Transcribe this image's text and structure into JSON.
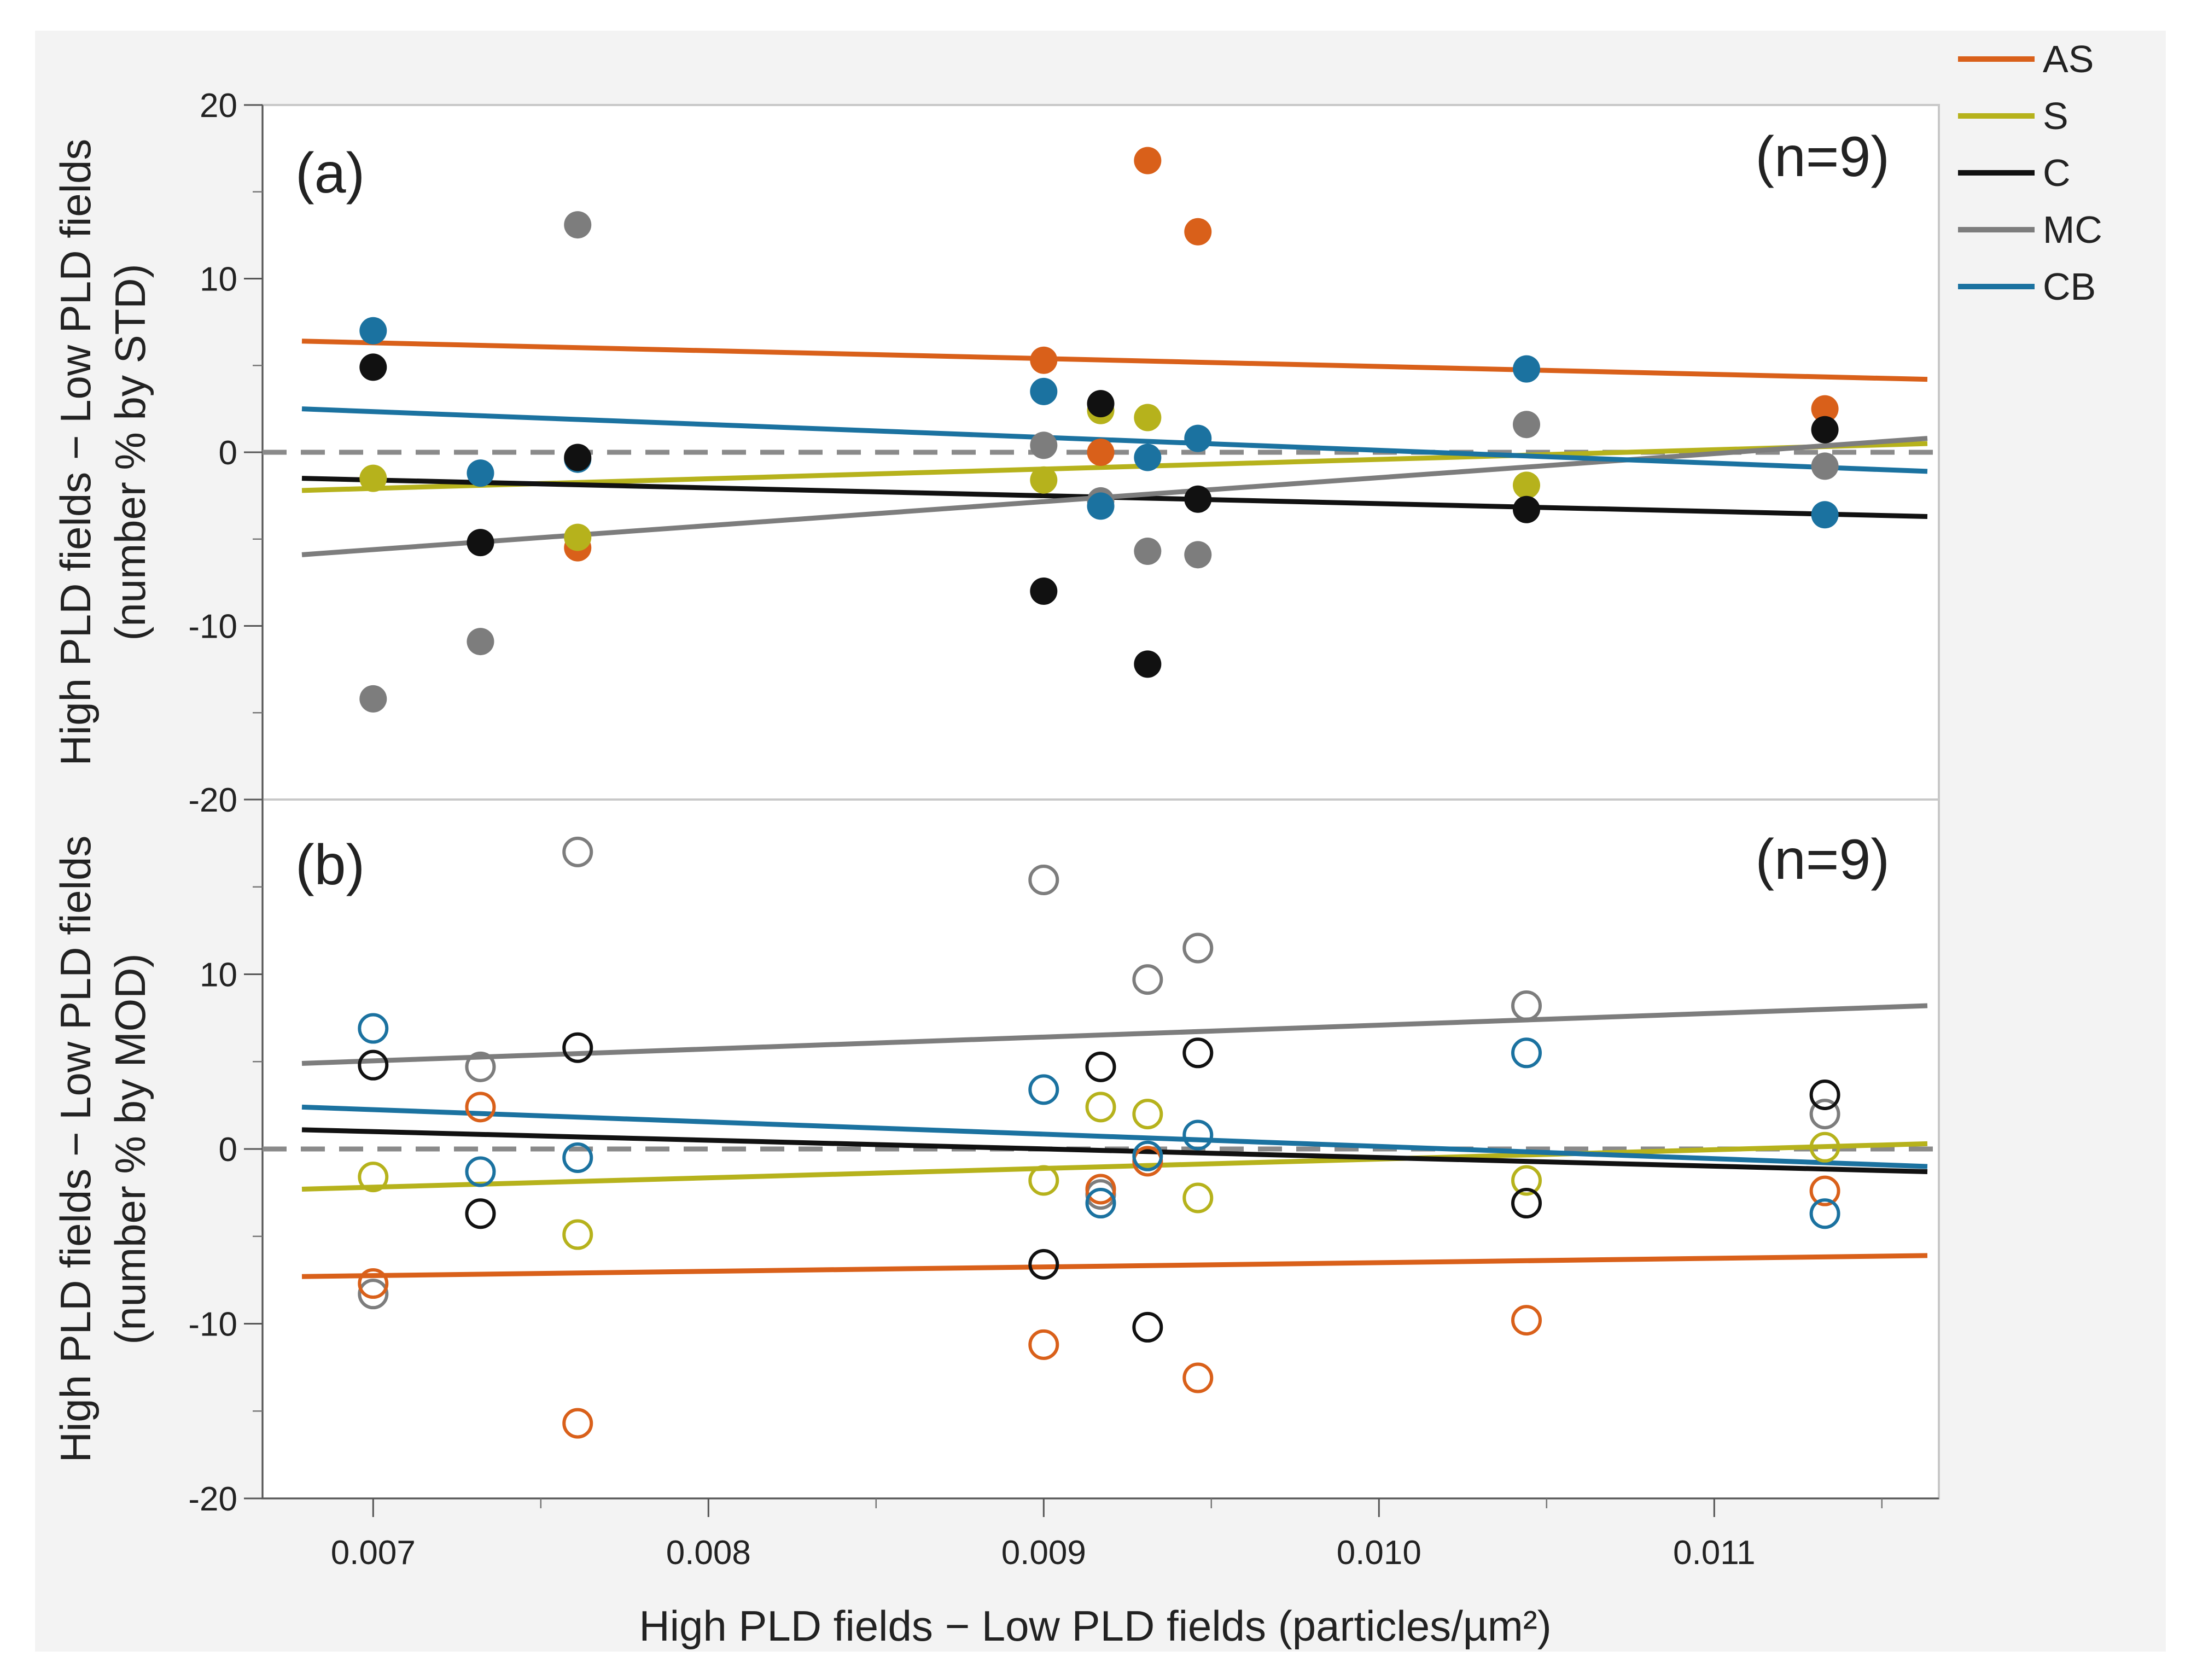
{
  "chart_data": {
    "type": "scatter",
    "x_label": "High PLD fields − Low PLD fields (particles/µm²)",
    "x_ticks": [
      "0.007",
      "0.008",
      "0.009",
      "0.010",
      "0.011"
    ],
    "xlim": [
      0.00667,
      0.01167
    ],
    "x": [
      0.007,
      0.00732,
      0.00761,
      0.009,
      0.00917,
      0.00931,
      0.00946,
      0.01044,
      0.01133
    ],
    "legend": [
      {
        "key": "AS",
        "label": "AS",
        "color": "#d9601a"
      },
      {
        "key": "S",
        "label": "S",
        "color": "#b6b21c"
      },
      {
        "key": "C",
        "label": "C",
        "color": "#111111"
      },
      {
        "key": "MC",
        "label": "MC",
        "color": "#7d7d7d"
      },
      {
        "key": "CB",
        "label": "CB",
        "color": "#1b72a0"
      }
    ],
    "zero_line": "dashed",
    "panels": [
      {
        "id": "a",
        "tag": "(a)",
        "n_label": "(n=9)",
        "y_label_line1": "High PLD fields − Low PLD fields",
        "y_label_line2": "(number % by STD)",
        "marker": "filled",
        "ylim": [
          -20,
          20
        ],
        "y_ticks": [
          "20",
          "10",
          "0",
          "-10",
          "-20"
        ],
        "series": [
          {
            "name": "AS",
            "values": [
              null,
              null,
              -5.5,
              5.3,
              0.0,
              16.8,
              12.7,
              null,
              2.5
            ],
            "fit": [
              6.4,
              4.2
            ]
          },
          {
            "name": "S",
            "values": [
              -1.5,
              null,
              -4.9,
              -1.6,
              2.4,
              2.0,
              null,
              -1.9,
              null
            ],
            "fit": [
              -2.2,
              0.5
            ]
          },
          {
            "name": "C",
            "values": [
              4.9,
              -5.2,
              -0.3,
              -8.0,
              2.8,
              -12.2,
              -2.7,
              -3.3,
              1.3
            ],
            "fit": [
              -1.5,
              -3.7
            ]
          },
          {
            "name": "MC",
            "values": [
              -14.2,
              -10.9,
              13.1,
              0.4,
              -2.8,
              -5.7,
              -5.9,
              1.6,
              -0.8
            ],
            "fit": [
              -5.9,
              0.8
            ]
          },
          {
            "name": "CB",
            "values": [
              7.0,
              -1.2,
              -0.4,
              3.5,
              -3.1,
              -0.3,
              0.8,
              4.8,
              -3.6
            ],
            "fit": [
              2.5,
              -1.1
            ]
          }
        ]
      },
      {
        "id": "b",
        "tag": "(b)",
        "n_label": "(n=9)",
        "y_label_line1": "High PLD fields − Low PLD fields",
        "y_label_line2": "(number % by MOD)",
        "marker": "open",
        "ylim": [
          -20,
          20
        ],
        "y_ticks": [
          "10",
          "0",
          "-10",
          "-20"
        ],
        "series": [
          {
            "name": "AS",
            "values": [
              -7.7,
              2.4,
              -15.7,
              -11.2,
              -2.3,
              -0.7,
              -13.1,
              -9.8,
              -2.4
            ],
            "fit": [
              -7.3,
              -6.1
            ]
          },
          {
            "name": "S",
            "values": [
              -1.6,
              null,
              -4.9,
              -1.8,
              2.4,
              2.0,
              -2.8,
              -1.8,
              0.1
            ],
            "fit": [
              -2.3,
              0.3
            ]
          },
          {
            "name": "C",
            "values": [
              4.8,
              -3.7,
              5.8,
              -6.6,
              4.7,
              -10.2,
              5.5,
              -3.1,
              3.1
            ],
            "fit": [
              1.1,
              -1.3
            ]
          },
          {
            "name": "MC",
            "values": [
              -8.3,
              4.7,
              17.0,
              15.4,
              -2.6,
              9.7,
              11.5,
              8.2,
              2.0
            ],
            "fit": [
              4.9,
              8.2
            ]
          },
          {
            "name": "CB",
            "values": [
              6.9,
              -1.3,
              -0.5,
              3.4,
              -3.1,
              -0.4,
              0.8,
              5.5,
              -3.7
            ],
            "fit": [
              2.4,
              -1.0
            ]
          }
        ]
      }
    ]
  }
}
